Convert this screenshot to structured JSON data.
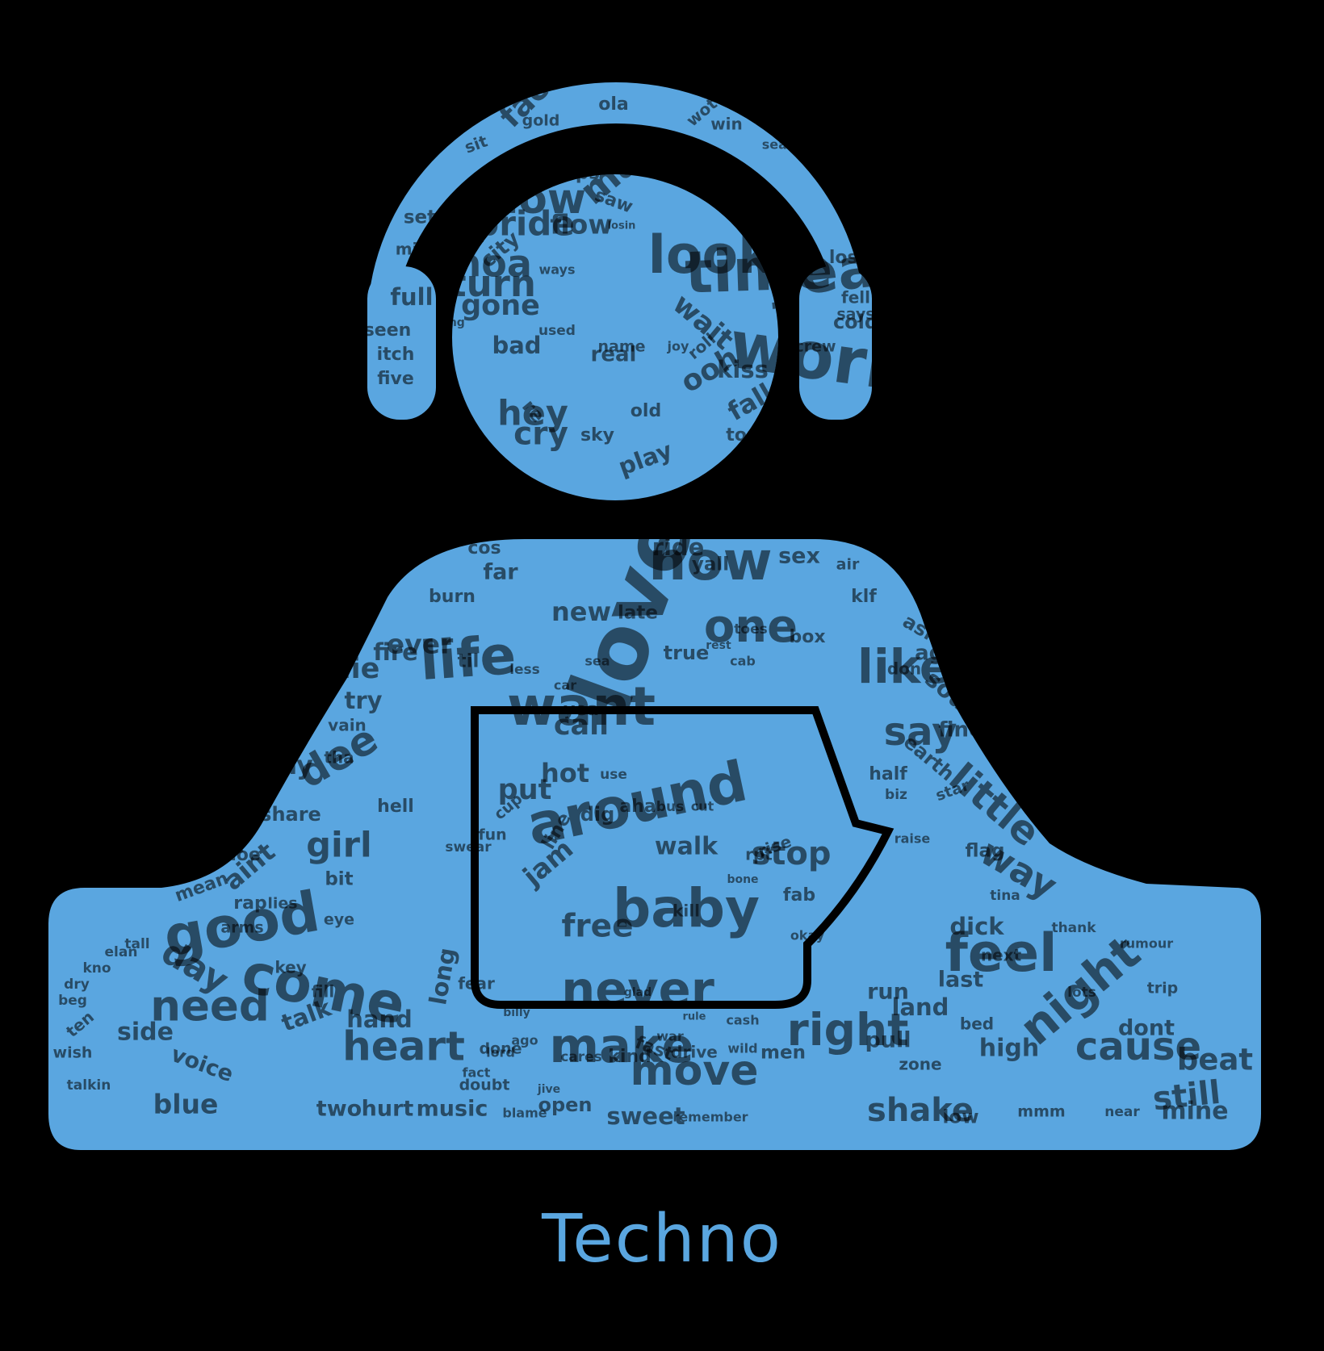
{
  "caption": "Techno",
  "colors": {
    "background": "#000000",
    "word": "#5aa6e0",
    "word_dark": "#000000"
  },
  "words": [
    [
      "love",
      150,
      -70
    ],
    [
      "now",
      92,
      0
    ],
    [
      "one",
      78,
      0
    ],
    [
      "life",
      92,
      -4
    ],
    [
      "like",
      80,
      0
    ],
    [
      "want",
      92,
      0
    ],
    [
      "around",
      96,
      -12
    ],
    [
      "baby",
      92,
      0
    ],
    [
      "dee",
      70,
      -30
    ],
    [
      "good",
      96,
      -10
    ],
    [
      "come",
      94,
      12
    ],
    [
      "feel",
      90,
      0
    ],
    [
      "night",
      80,
      -40
    ],
    [
      "never",
      82,
      0
    ],
    [
      "right",
      76,
      0
    ],
    [
      "make",
      82,
      0
    ],
    [
      "heart",
      70,
      0
    ],
    [
      "move",
      72,
      0
    ],
    [
      "need",
      74,
      0
    ],
    [
      "cause",
      66,
      0
    ],
    [
      "little",
      66,
      40
    ],
    [
      "way",
      62,
      30
    ],
    [
      "say",
      66,
      0
    ],
    [
      "stop",
      56,
      0
    ],
    [
      "girl",
      60,
      0
    ],
    [
      "put",
      48,
      0
    ],
    [
      "hot",
      44,
      0
    ],
    [
      "call",
      48,
      0
    ],
    [
      "free",
      54,
      0
    ],
    [
      "jam",
      46,
      -40
    ],
    [
      "walk",
      42,
      0
    ],
    [
      "side",
      42,
      0
    ],
    [
      "day",
      60,
      30
    ],
    [
      "long",
      40,
      -80
    ],
    [
      "hand",
      40,
      0
    ],
    [
      "voice",
      38,
      20
    ],
    [
      "blue",
      46,
      0
    ],
    [
      "hurt",
      38,
      0
    ],
    [
      "two",
      38,
      0
    ],
    [
      "music",
      38,
      0
    ],
    [
      "open",
      34,
      0
    ],
    [
      "sweet",
      40,
      0
    ],
    [
      "remember",
      22,
      0
    ],
    [
      "drive",
      28,
      0
    ],
    [
      "men",
      32,
      0
    ],
    [
      "zone",
      28,
      0
    ],
    [
      "shake",
      56,
      0
    ],
    [
      "low",
      32,
      0
    ],
    [
      "mmm",
      26,
      0
    ],
    [
      "near",
      24,
      0
    ],
    [
      "mine",
      42,
      0
    ],
    [
      "dont",
      38,
      0
    ],
    [
      "trip",
      26,
      0
    ],
    [
      "beat",
      52,
      0
    ],
    [
      "still",
      56,
      -6
    ],
    [
      "rumour",
      22,
      0
    ],
    [
      "thank",
      24,
      0
    ],
    [
      "dick",
      40,
      0
    ],
    [
      "last",
      38,
      0
    ],
    [
      "land",
      40,
      0
    ],
    [
      "bed",
      28,
      0
    ],
    [
      "pull",
      38,
      0
    ],
    [
      "run",
      38,
      0
    ],
    [
      "high",
      42,
      0
    ],
    [
      "flag",
      32,
      0
    ],
    [
      "tina",
      24,
      0
    ],
    [
      "star",
      26,
      -20
    ],
    [
      "earth",
      34,
      40
    ],
    [
      "biz",
      24,
      0
    ],
    [
      "raise",
      22,
      0
    ],
    [
      "soul",
      40,
      40
    ],
    [
      "age",
      36,
      0
    ],
    [
      "ask",
      34,
      30
    ],
    [
      "klf",
      30,
      0
    ],
    [
      "air",
      26,
      0
    ],
    [
      "sex",
      38,
      0
    ],
    [
      "sun",
      38,
      0
    ],
    [
      "fly",
      34,
      0
    ],
    [
      "ride",
      40,
      0
    ],
    [
      "cos",
      30,
      0
    ],
    [
      "far",
      38,
      0
    ],
    [
      "burn",
      30,
      0
    ],
    [
      "new",
      44,
      0
    ],
    [
      "ever",
      46,
      0
    ],
    [
      "fire",
      40,
      0
    ],
    [
      "die",
      48,
      0
    ],
    [
      "try",
      40,
      0
    ],
    [
      "vain",
      28,
      0
    ],
    [
      "stay",
      44,
      0
    ],
    [
      "share",
      34,
      0
    ],
    [
      "hell",
      30,
      0
    ],
    [
      "cuz",
      38,
      -30
    ],
    [
      "aint",
      44,
      -40
    ],
    [
      "rap",
      30,
      0
    ],
    [
      "mean",
      30,
      -20
    ],
    [
      "bit",
      32,
      0
    ],
    [
      "hoe",
      30,
      0
    ],
    [
      "left",
      32,
      -30
    ],
    [
      "lies",
      26,
      0
    ],
    [
      "eye",
      26,
      0
    ],
    [
      "key",
      28,
      0
    ],
    [
      "talk",
      40,
      -20
    ],
    [
      "fear",
      28,
      0
    ],
    [
      "billy",
      20,
      0
    ],
    [
      "ago",
      22,
      0
    ],
    [
      "lord",
      22,
      0
    ],
    [
      "fact",
      22,
      0
    ],
    [
      "doubt",
      26,
      0
    ],
    [
      "blame",
      22,
      0
    ],
    [
      "jive",
      20,
      0
    ],
    [
      "done",
      26,
      0
    ],
    [
      "cares",
      24,
      0
    ],
    [
      "kind",
      30,
      0
    ],
    [
      "fast",
      30,
      20
    ],
    [
      "war",
      22,
      0
    ],
    [
      "wild",
      22,
      0
    ],
    [
      "cash",
      22,
      0
    ],
    [
      "rule",
      18,
      0
    ],
    [
      "fab",
      30,
      0
    ],
    [
      "rise",
      28,
      -20
    ],
    [
      "rpt",
      28,
      0
    ],
    [
      "bone",
      20,
      0
    ],
    [
      "cut",
      22,
      0
    ],
    [
      "bus",
      24,
      0
    ],
    [
      "cup",
      26,
      -40
    ],
    [
      "fun",
      26,
      0
    ],
    [
      "swear",
      24,
      0
    ],
    [
      "line",
      32,
      -60
    ],
    [
      "use",
      24,
      0
    ],
    [
      "dig",
      34,
      0
    ],
    [
      "real",
      36,
      0
    ],
    [
      "used",
      24,
      0
    ],
    [
      "ways",
      22,
      0
    ],
    [
      "losin",
      18,
      0
    ],
    [
      "ring",
      20,
      0
    ],
    [
      "saw",
      30,
      20
    ],
    [
      "sky",
      30,
      0
    ],
    [
      "joy",
      22,
      0
    ],
    [
      "name",
      26,
      0
    ],
    [
      "cold",
      34,
      0
    ],
    [
      "world",
      112,
      8
    ],
    [
      "yeah",
      96,
      -6
    ],
    [
      "time",
      100,
      -2
    ],
    [
      "look",
      90,
      0
    ],
    [
      "show",
      72,
      0
    ],
    [
      "turn",
      62,
      0
    ],
    [
      "whoa",
      64,
      0
    ],
    [
      "gone",
      48,
      0
    ],
    [
      "bad",
      40,
      0
    ],
    [
      "hey",
      60,
      0
    ],
    [
      "cry",
      54,
      0
    ],
    [
      "ooh",
      50,
      -30
    ],
    [
      "kiss",
      40,
      0
    ],
    [
      "fall",
      44,
      -30
    ],
    [
      "play",
      40,
      -20
    ],
    [
      "full",
      40,
      0
    ],
    [
      "itch",
      30,
      0
    ],
    [
      "seen",
      30,
      0
    ],
    [
      "five",
      30,
      0
    ],
    [
      "mix",
      28,
      0
    ],
    [
      "set",
      32,
      0
    ],
    [
      "sit",
      28,
      -20
    ],
    [
      "gold",
      26,
      0
    ],
    [
      "ola",
      30,
      0
    ],
    [
      "wot",
      28,
      -40
    ],
    [
      "seasons",
      22,
      0
    ],
    [
      "face",
      54,
      -45
    ],
    [
      "live",
      42,
      0
    ],
    [
      "lost",
      30,
      0
    ],
    [
      "says",
      26,
      0
    ],
    [
      "fell",
      28,
      0
    ],
    [
      "end",
      40,
      -20
    ],
    [
      "hit",
      30,
      0
    ],
    [
      "man",
      64,
      -40
    ],
    [
      "lips",
      32,
      0
    ],
    [
      "pride",
      58,
      0
    ],
    [
      "flow",
      46,
      0
    ],
    [
      "wait",
      48,
      40
    ],
    [
      "roll",
      28,
      -40
    ],
    [
      "crew",
      26,
      0
    ],
    [
      "city",
      36,
      -40
    ],
    [
      "top",
      30,
      0
    ],
    [
      "old",
      30,
      0
    ],
    [
      "re",
      34,
      50
    ],
    [
      "win",
      28,
      0
    ],
    [
      "talkin",
      24,
      0
    ],
    [
      "wish",
      26,
      0
    ],
    [
      "ten",
      28,
      -40
    ],
    [
      "beg",
      24,
      0
    ],
    [
      "dry",
      24,
      0
    ],
    [
      "kno",
      24,
      0
    ],
    [
      "elan",
      24,
      0
    ],
    [
      "tall",
      24,
      0
    ],
    [
      "sea",
      22,
      0
    ],
    [
      "car",
      22,
      0
    ],
    [
      "less",
      24,
      0
    ],
    [
      "cab",
      22,
      0
    ],
    [
      "rest",
      20,
      0
    ],
    [
      "true",
      34,
      0
    ],
    [
      "box",
      30,
      0
    ],
    [
      "okay",
      22,
      0
    ],
    [
      "fine",
      36,
      0
    ],
    [
      "half",
      30,
      0
    ],
    [
      "late",
      32,
      0
    ],
    [
      "yall",
      32,
      0
    ],
    [
      "toes",
      24,
      0
    ],
    [
      "til",
      32,
      0
    ],
    [
      "don",
      28,
      0
    ],
    [
      "yea",
      30,
      0
    ],
    [
      "aha",
      30,
      0
    ],
    [
      "kill",
      28,
      0
    ],
    [
      "tha",
      28,
      0
    ],
    [
      "arms",
      26,
      0
    ],
    [
      "fill",
      28,
      0
    ],
    [
      "next",
      28,
      0
    ],
    [
      "lots",
      24,
      0
    ],
    [
      "glad",
      20,
      0
    ]
  ]
}
